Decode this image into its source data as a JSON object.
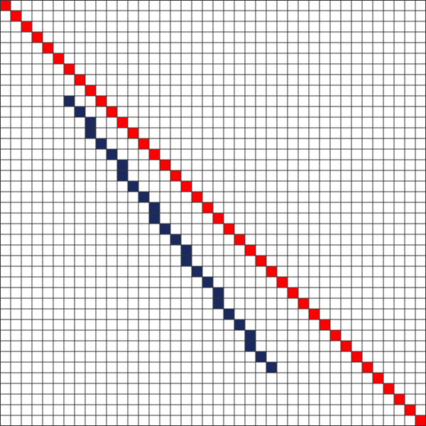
{
  "board": {
    "columns": 40,
    "rows": 40,
    "background_color": "#ffffff",
    "grid_color": "#333333"
  },
  "lines": [
    {
      "color": "#ff0000",
      "cells": [
        [
          0,
          0
        ],
        [
          1,
          1
        ],
        [
          2,
          2
        ],
        [
          3,
          3
        ],
        [
          4,
          4
        ],
        [
          5,
          5
        ],
        [
          6,
          6
        ],
        [
          7,
          7
        ],
        [
          8,
          8
        ],
        [
          9,
          9
        ],
        [
          10,
          10
        ],
        [
          11,
          11
        ],
        [
          12,
          12
        ],
        [
          13,
          13
        ],
        [
          14,
          14
        ],
        [
          15,
          15
        ],
        [
          16,
          16
        ],
        [
          17,
          17
        ],
        [
          18,
          18
        ],
        [
          19,
          19
        ],
        [
          20,
          20
        ],
        [
          21,
          21
        ],
        [
          22,
          22
        ],
        [
          23,
          23
        ],
        [
          24,
          24
        ],
        [
          25,
          25
        ],
        [
          26,
          26
        ],
        [
          27,
          27
        ],
        [
          28,
          28
        ],
        [
          29,
          29
        ],
        [
          30,
          30
        ],
        [
          31,
          31
        ],
        [
          32,
          32
        ],
        [
          33,
          33
        ],
        [
          34,
          34
        ],
        [
          35,
          35
        ],
        [
          36,
          36
        ],
        [
          37,
          37
        ],
        [
          38,
          38
        ],
        [
          39,
          39
        ]
      ]
    },
    {
      "color": "#1a2a5e",
      "cells": [
        [
          6,
          9
        ],
        [
          7,
          10
        ],
        [
          8,
          11
        ],
        [
          8,
          12
        ],
        [
          9,
          13
        ],
        [
          10,
          14
        ],
        [
          11,
          15
        ],
        [
          11,
          16
        ],
        [
          12,
          17
        ],
        [
          13,
          18
        ],
        [
          14,
          19
        ],
        [
          14,
          20
        ],
        [
          15,
          21
        ],
        [
          16,
          22
        ],
        [
          17,
          23
        ],
        [
          17,
          24
        ],
        [
          18,
          25
        ],
        [
          19,
          26
        ],
        [
          20,
          27
        ],
        [
          20,
          28
        ],
        [
          21,
          29
        ],
        [
          22,
          30
        ],
        [
          23,
          31
        ],
        [
          23,
          32
        ],
        [
          24,
          33
        ],
        [
          25,
          34
        ]
      ]
    }
  ]
}
